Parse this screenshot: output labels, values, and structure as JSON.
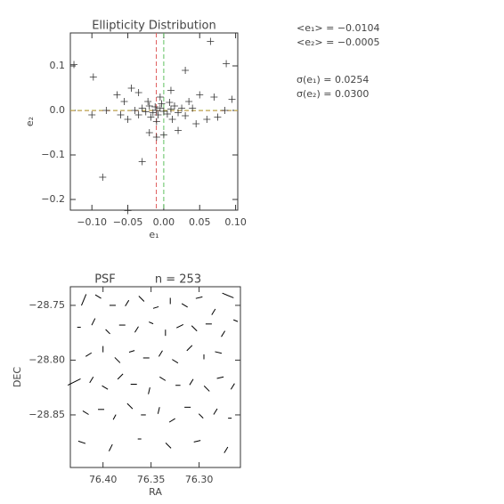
{
  "chart_data": [
    {
      "type": "scatter",
      "title": "Ellipticity Distribution",
      "x_label": "e₁",
      "y_label": "e₂",
      "xlim": [
        -0.13,
        0.103
      ],
      "ylim": [
        -0.224,
        0.174
      ],
      "xticks": [
        {
          "value": -0.1,
          "label": "−0.10"
        },
        {
          "value": -0.05,
          "label": "−0.05"
        },
        {
          "value": 0,
          "label": "0.00"
        },
        {
          "value": 0.05,
          "label": "0.05"
        },
        {
          "value": 0.1,
          "label": "0.10"
        }
      ],
      "yticks": [
        {
          "value": 0.1,
          "label": "0.1"
        },
        {
          "value": 0,
          "label": "0.0"
        },
        {
          "value": -0.1,
          "label": "−0.1"
        },
        {
          "value": -0.2,
          "label": "−0.2"
        }
      ],
      "color": "#333333",
      "x": [
        -0.01,
        -0.005,
        -0.015,
        0.0,
        -0.02,
        0.01,
        -0.008,
        -0.012,
        0.005,
        -0.025,
        0.015,
        -0.03,
        0.02,
        -0.018,
        -0.003,
        0.008,
        -0.035,
        0.025,
        -0.04,
        0.03,
        -0.01,
        -0.005,
        0.012,
        -0.022,
        -0.125,
        -0.098,
        -0.08,
        -0.06,
        -0.05,
        -0.045,
        -0.035,
        0.03,
        0.05,
        0.07,
        0.085,
        0.095,
        0.087,
        0.065,
        0.04,
        0.06,
        0.045,
        0.02,
        -0.01,
        -0.02,
        -0.03,
        -0.085,
        -0.05,
        0.0,
        -0.065,
        -0.1,
        0.075,
        0.01,
        -0.055,
        0.035
      ],
      "y": [
        0.0,
        0.005,
        -0.005,
        -0.002,
        0.01,
        0.003,
        -0.01,
        0.008,
        -0.008,
        -0.003,
        0.01,
        0.005,
        -0.005,
        -0.015,
        0.015,
        0.018,
        -0.01,
        0.005,
        0.0,
        -0.012,
        -0.025,
        0.03,
        -0.02,
        0.02,
        0.103,
        0.075,
        0.0,
        -0.01,
        -0.02,
        0.05,
        0.04,
        0.09,
        0.035,
        0.03,
        0.0,
        0.025,
        0.105,
        0.155,
        0.005,
        -0.02,
        -0.03,
        -0.045,
        -0.06,
        -0.05,
        -0.115,
        -0.15,
        -0.225,
        -0.055,
        0.035,
        -0.01,
        -0.015,
        0.045,
        0.02,
        0.02
      ],
      "ref_lines": [
        {
          "axis": "x",
          "value": -0.0104,
          "color": "#e06060"
        },
        {
          "axis": "x",
          "value": 0,
          "color": "#60c060"
        },
        {
          "axis": "y",
          "value": -0.0005,
          "color": "#e06060"
        },
        {
          "axis": "y",
          "value": 0,
          "color": "#b0b040"
        }
      ],
      "annotations": [
        "<e₁> = −0.0104",
        "<e₂> = −0.0005",
        "σ(e₁) = 0.0254",
        "σ(e₂) = 0.0300"
      ]
    },
    {
      "type": "whisker",
      "title": "PSF",
      "subtitle": "n = 253",
      "x_label": "RA",
      "y_label": "DEC",
      "xlim": [
        76.434,
        76.257
      ],
      "ylim": [
        -28.898,
        -28.733
      ],
      "xticks": [
        {
          "value": 76.4,
          "label": "76.40"
        },
        {
          "value": 76.35,
          "label": "76.35"
        },
        {
          "value": 76.3,
          "label": "76.30"
        }
      ],
      "yticks": [
        {
          "value": -28.75,
          "label": "−28.75"
        },
        {
          "value": -28.8,
          "label": "−28.80"
        },
        {
          "value": -28.85,
          "label": "−28.85"
        }
      ],
      "color": "#000000",
      "x": [
        76.42,
        76.405,
        76.39,
        76.375,
        76.36,
        76.345,
        76.33,
        76.315,
        76.3,
        76.285,
        76.27,
        76.425,
        76.41,
        76.395,
        76.38,
        76.365,
        76.35,
        76.335,
        76.32,
        76.305,
        76.29,
        76.275,
        76.262,
        76.415,
        76.4,
        76.385,
        76.37,
        76.355,
        76.34,
        76.325,
        76.31,
        76.295,
        76.28,
        76.43,
        76.412,
        76.398,
        76.382,
        76.368,
        76.352,
        76.338,
        76.322,
        76.308,
        76.292,
        76.278,
        76.265,
        76.418,
        76.402,
        76.388,
        76.372,
        76.358,
        76.342,
        76.328,
        76.312,
        76.298,
        76.283,
        76.268,
        76.422,
        76.392,
        76.362,
        76.332,
        76.302,
        76.272
      ],
      "y": [
        -28.745,
        -28.742,
        -28.75,
        -28.748,
        -28.744,
        -28.752,
        -28.746,
        -28.75,
        -28.743,
        -28.756,
        -28.741,
        -28.77,
        -28.765,
        -28.774,
        -28.768,
        -28.772,
        -28.766,
        -28.775,
        -28.769,
        -28.771,
        -28.767,
        -28.776,
        -28.764,
        -28.795,
        -28.79,
        -28.8,
        -28.792,
        -28.798,
        -28.794,
        -28.801,
        -28.789,
        -28.797,
        -28.793,
        -28.82,
        -28.818,
        -28.825,
        -28.815,
        -28.822,
        -28.828,
        -28.817,
        -28.823,
        -28.82,
        -28.826,
        -28.816,
        -28.824,
        -28.848,
        -28.845,
        -28.852,
        -28.842,
        -28.85,
        -28.846,
        -28.855,
        -28.843,
        -28.851,
        -28.847,
        -28.853,
        -28.875,
        -28.88,
        -28.872,
        -28.878,
        -28.874,
        -28.882
      ],
      "e1": [
        -0.03,
        0.01,
        0.02,
        -0.01,
        0.0,
        0.015,
        -0.02,
        0.01,
        0.02,
        -0.01,
        0.03,
        0.01,
        -0.015,
        0.0,
        0.02,
        -0.01,
        0.01,
        -0.02,
        0.015,
        0.0,
        0.02,
        -0.01,
        0.01,
        0.01,
        -0.02,
        0.0,
        0.015,
        0.02,
        -0.01,
        0.01,
        0.0,
        -0.015,
        0.02,
        0.03,
        -0.01,
        0.01,
        0.0,
        0.02,
        -0.02,
        0.01,
        0.015,
        -0.01,
        0.0,
        0.02,
        -0.01,
        0.01,
        0.02,
        -0.01,
        0.0,
        0.015,
        -0.02,
        0.01,
        0.02,
        0.0,
        -0.01,
        0.01,
        0.02,
        -0.015,
        0.01,
        0.0,
        0.02,
        -0.01
      ],
      "e2": [
        0.03,
        -0.02,
        0.0,
        0.02,
        -0.025,
        0.01,
        0.0,
        -0.02,
        0.01,
        0.02,
        -0.03,
        0.0,
        0.02,
        -0.02,
        0.0,
        0.02,
        -0.01,
        0.0,
        0.02,
        -0.025,
        0.0,
        0.02,
        -0.01,
        0.02,
        0.0,
        -0.025,
        0.01,
        0.0,
        0.02,
        -0.02,
        0.025,
        0.0,
        -0.01,
        0.04,
        0.02,
        -0.02,
        0.025,
        0.0,
        0.01,
        -0.02,
        0.0,
        0.02,
        -0.025,
        0.01,
        0.02,
        -0.02,
        0.0,
        0.015,
        -0.025,
        0.0,
        0.01,
        0.02,
        0.0,
        -0.02,
        0.02,
        0.0,
        -0.015,
        0.02,
        0.0,
        -0.025,
        0.01,
        0.02
      ]
    }
  ]
}
